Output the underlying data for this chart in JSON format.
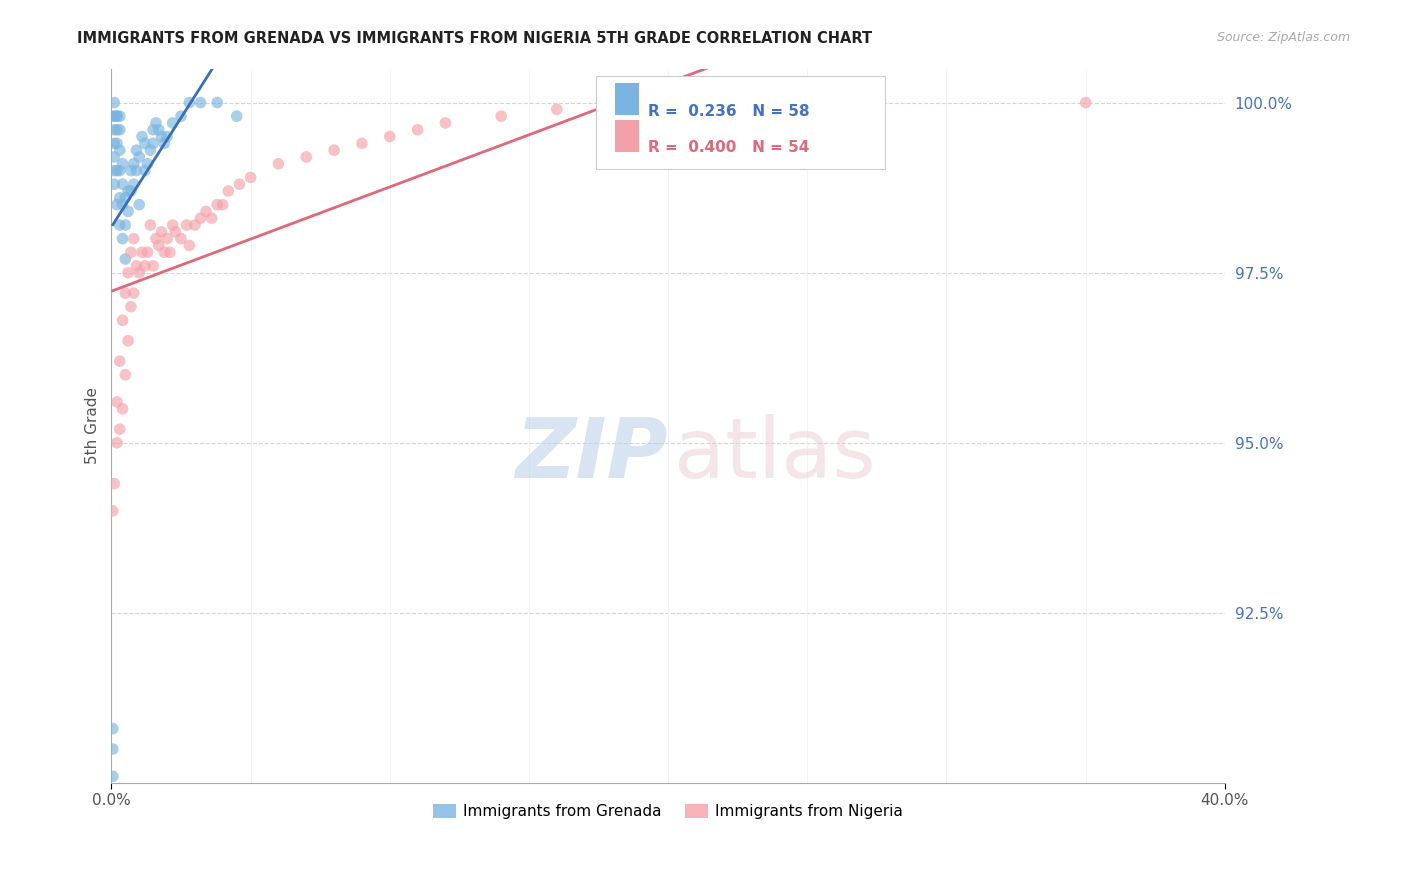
{
  "title": "IMMIGRANTS FROM GRENADA VS IMMIGRANTS FROM NIGERIA 5TH GRADE CORRELATION CHART",
  "source": "Source: ZipAtlas.com",
  "ylabel_left": "5th Grade",
  "xlim": [
    0.0,
    0.4
  ],
  "ylim": [
    0.9,
    1.005
  ],
  "yticks_right": [
    1.0,
    0.975,
    0.95,
    0.925
  ],
  "ytick_right_labels": [
    "100.0%",
    "97.5%",
    "95.0%",
    "92.5%"
  ],
  "grenada_R": 0.236,
  "grenada_N": 58,
  "nigeria_R": 0.4,
  "nigeria_N": 54,
  "blue_color": "#7ab4e0",
  "pink_color": "#f4a0a8",
  "blue_line_color": "#3a6fb5",
  "pink_line_color": "#e06878",
  "legend_label_grenada": "Immigrants from Grenada",
  "legend_label_nigeria": "Immigrants from Nigeria",
  "background_color": "#ffffff",
  "grid_color": "#cccccc",
  "grenada_x": [
    0.0005,
    0.0005,
    0.0005,
    0.0008,
    0.001,
    0.001,
    0.001,
    0.001,
    0.001,
    0.001,
    0.001,
    0.002,
    0.002,
    0.002,
    0.002,
    0.002,
    0.002,
    0.003,
    0.003,
    0.003,
    0.003,
    0.003,
    0.003,
    0.004,
    0.004,
    0.004,
    0.004,
    0.005,
    0.005,
    0.005,
    0.006,
    0.006,
    0.007,
    0.007,
    0.008,
    0.008,
    0.009,
    0.009,
    0.01,
    0.01,
    0.011,
    0.012,
    0.012,
    0.013,
    0.014,
    0.015,
    0.015,
    0.016,
    0.017,
    0.018,
    0.019,
    0.02,
    0.022,
    0.025,
    0.028,
    0.032,
    0.038,
    0.045
  ],
  "grenada_y": [
    0.901,
    0.905,
    0.908,
    0.998,
    1.0,
    0.998,
    0.996,
    0.994,
    0.992,
    0.99,
    0.988,
    0.985,
    0.99,
    0.994,
    0.996,
    0.998,
    0.998,
    0.982,
    0.986,
    0.99,
    0.993,
    0.996,
    0.998,
    0.98,
    0.985,
    0.988,
    0.991,
    0.977,
    0.982,
    0.986,
    0.984,
    0.987,
    0.987,
    0.99,
    0.988,
    0.991,
    0.99,
    0.993,
    0.985,
    0.992,
    0.995,
    0.99,
    0.994,
    0.991,
    0.993,
    0.994,
    0.996,
    0.997,
    0.996,
    0.995,
    0.994,
    0.995,
    0.997,
    0.998,
    1.0,
    1.0,
    1.0,
    0.998
  ],
  "nigeria_x": [
    0.0005,
    0.001,
    0.002,
    0.002,
    0.003,
    0.003,
    0.004,
    0.004,
    0.005,
    0.005,
    0.006,
    0.006,
    0.007,
    0.007,
    0.008,
    0.008,
    0.009,
    0.01,
    0.011,
    0.012,
    0.013,
    0.014,
    0.015,
    0.016,
    0.017,
    0.018,
    0.019,
    0.02,
    0.021,
    0.022,
    0.023,
    0.025,
    0.027,
    0.028,
    0.03,
    0.032,
    0.034,
    0.036,
    0.038,
    0.04,
    0.042,
    0.046,
    0.05,
    0.06,
    0.07,
    0.08,
    0.09,
    0.1,
    0.11,
    0.12,
    0.14,
    0.16,
    0.18,
    0.35
  ],
  "nigeria_y": [
    0.94,
    0.944,
    0.95,
    0.956,
    0.952,
    0.962,
    0.955,
    0.968,
    0.96,
    0.972,
    0.965,
    0.975,
    0.97,
    0.978,
    0.972,
    0.98,
    0.976,
    0.975,
    0.978,
    0.976,
    0.978,
    0.982,
    0.976,
    0.98,
    0.979,
    0.981,
    0.978,
    0.98,
    0.978,
    0.982,
    0.981,
    0.98,
    0.982,
    0.979,
    0.982,
    0.983,
    0.984,
    0.983,
    0.985,
    0.985,
    0.987,
    0.988,
    0.989,
    0.991,
    0.992,
    0.993,
    0.994,
    0.995,
    0.996,
    0.997,
    0.998,
    0.999,
    0.999,
    1.0
  ]
}
